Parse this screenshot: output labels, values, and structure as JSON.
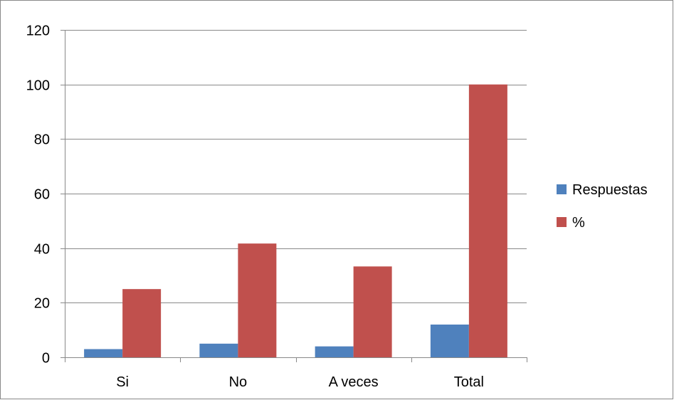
{
  "chart_data": {
    "type": "bar",
    "title": "",
    "xlabel": "",
    "ylabel": "",
    "categories": [
      "Si",
      "No",
      "A veces",
      "Total"
    ],
    "series": [
      {
        "name": "Respuestas",
        "color": "#4F81BD",
        "values": [
          3,
          5,
          4,
          12
        ]
      },
      {
        "name": "%",
        "color": "#C0504D",
        "values": [
          25,
          41.7,
          33.3,
          100
        ]
      }
    ],
    "ylim": [
      0,
      120
    ],
    "yticks": [
      0,
      20,
      40,
      60,
      80,
      100,
      120
    ],
    "grid": true,
    "legend_position": "right"
  }
}
